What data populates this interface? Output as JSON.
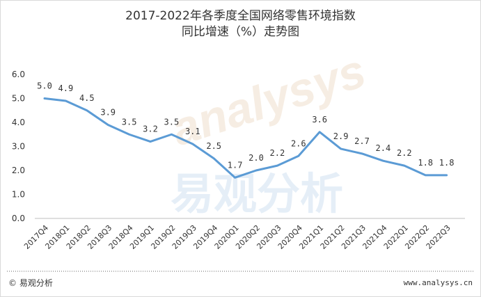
{
  "chart_data": {
    "type": "line",
    "title": "2017-2022年各季度全国网络零售环境指数",
    "subtitle": "同比增速（%）走势图",
    "categories": [
      "2017Q4",
      "2018Q1",
      "2018Q2",
      "2018Q3",
      "2018Q4",
      "2019Q1",
      "2019Q2",
      "2019Q3",
      "2019Q4",
      "2020Q1",
      "2020Q2",
      "2020Q3",
      "2020Q4",
      "2021Q1",
      "2021Q2",
      "2021Q3",
      "2021Q4",
      "2022Q1",
      "2022Q2",
      "2022Q3"
    ],
    "values": [
      5.0,
      4.9,
      4.5,
      3.9,
      3.5,
      3.2,
      3.5,
      3.1,
      2.5,
      1.7,
      2.0,
      2.2,
      2.6,
      3.6,
      2.9,
      2.7,
      2.4,
      2.2,
      1.8,
      1.8
    ],
    "ylim": [
      0,
      6
    ],
    "yticks": [
      "0.0",
      "1.0",
      "2.0",
      "3.0",
      "4.0",
      "5.0",
      "6.0"
    ],
    "line_color": "#5b9bd5",
    "grid": false,
    "legend": "none"
  },
  "watermark": {
    "text": "易观分析",
    "brand": "analysys"
  },
  "footer": {
    "left": "© 易观分析",
    "right": "www.analysys.cn"
  }
}
